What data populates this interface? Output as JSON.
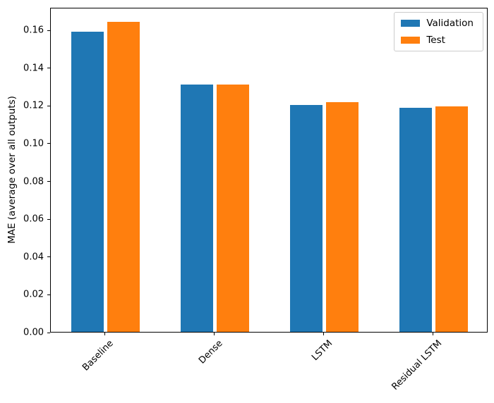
{
  "chart_data": {
    "type": "bar",
    "title": "",
    "xlabel": "",
    "ylabel": "MAE (average over all outputs)",
    "categories": [
      "Baseline",
      "Dense",
      "LSTM",
      "Residual LSTM"
    ],
    "series": [
      {
        "name": "Validation",
        "color": "#1f77b4",
        "values": [
          0.159,
          0.131,
          0.12,
          0.1185
        ]
      },
      {
        "name": "Test",
        "color": "#ff7f0e",
        "values": [
          0.164,
          0.131,
          0.1215,
          0.1195
        ]
      }
    ],
    "ylim": [
      0,
      0.172
    ],
    "yticks": [
      "0.00",
      "0.02",
      "0.04",
      "0.06",
      "0.08",
      "0.10",
      "0.12",
      "0.14",
      "0.16"
    ],
    "grid": false,
    "legend_position": "upper right",
    "x_tick_rotation": 45
  }
}
